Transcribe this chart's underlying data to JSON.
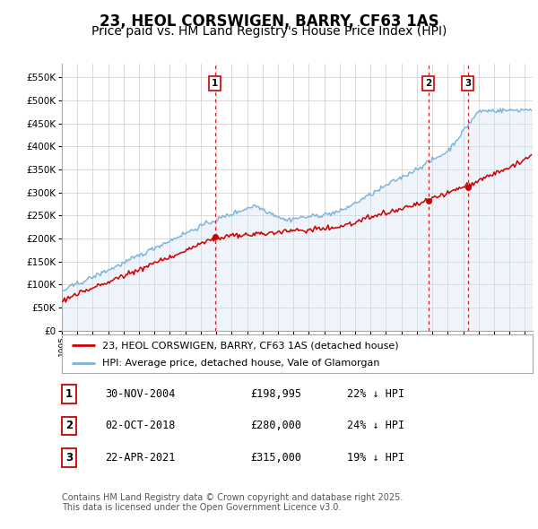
{
  "title": "23, HEOL CORSWIGEN, BARRY, CF63 1AS",
  "subtitle": "Price paid vs. HM Land Registry's House Price Index (HPI)",
  "legend_line1": "23, HEOL CORSWIGEN, BARRY, CF63 1AS (detached house)",
  "legend_line2": "HPI: Average price, detached house, Vale of Glamorgan",
  "footer": "Contains HM Land Registry data © Crown copyright and database right 2025.\nThis data is licensed under the Open Government Licence v3.0.",
  "purchases": [
    {
      "label": "1",
      "date": "30-NOV-2004",
      "price": 198995,
      "price_str": "£198,995",
      "pct": "22% ↓ HPI",
      "x_year": 2004.92
    },
    {
      "label": "2",
      "date": "02-OCT-2018",
      "price": 280000,
      "price_str": "£280,000",
      "pct": "24% ↓ HPI",
      "x_year": 2018.75
    },
    {
      "label": "3",
      "date": "22-APR-2021",
      "price": 315000,
      "price_str": "£315,000",
      "pct": "19% ↓ HPI",
      "x_year": 2021.31
    }
  ],
  "hpi_color": "#7ab3d9",
  "hpi_fill_color": "#cfe2f3",
  "price_color": "#cc0000",
  "vline_color": "#cc0000",
  "background_color": "#ffffff",
  "grid_color": "#cccccc",
  "ylim": [
    0,
    580000
  ],
  "xlim_start": 1995.0,
  "xlim_end": 2025.5,
  "yticks": [
    0,
    50000,
    100000,
    150000,
    200000,
    250000,
    300000,
    350000,
    400000,
    450000,
    500000,
    550000
  ],
  "title_fontsize": 12,
  "subtitle_fontsize": 10
}
